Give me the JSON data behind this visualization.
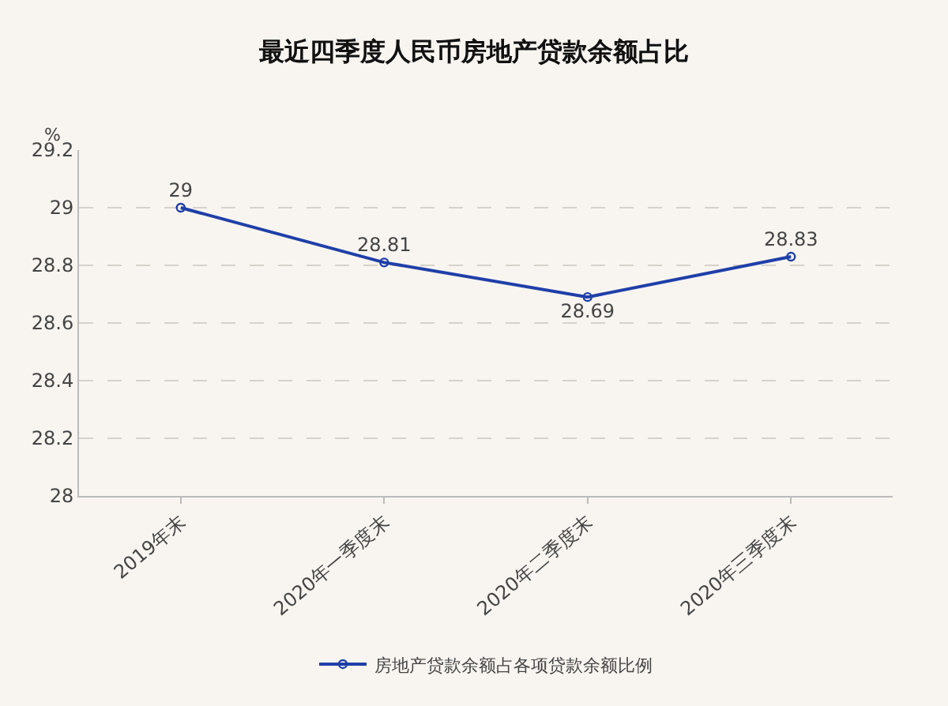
{
  "chart_data": {
    "type": "line",
    "title": "最近四季度人民币房地产贷款余额占比",
    "ylabel": "%",
    "categories": [
      "2019年末",
      "2020年一季度末",
      "2020年二季度末",
      "2020年三季度末"
    ],
    "series": [
      {
        "name": "房地产贷款余额占各项贷款余额比例",
        "color": "#1f3fa8",
        "values": [
          29,
          28.81,
          28.69,
          28.83
        ]
      }
    ],
    "ylim": [
      28,
      29.2
    ],
    "yticks": [
      28,
      28.2,
      28.4,
      28.6,
      28.8,
      29,
      29.2
    ],
    "grid": "y",
    "legend": "bottom",
    "marker": "circle",
    "line_style": "solid",
    "data_labels": true
  }
}
